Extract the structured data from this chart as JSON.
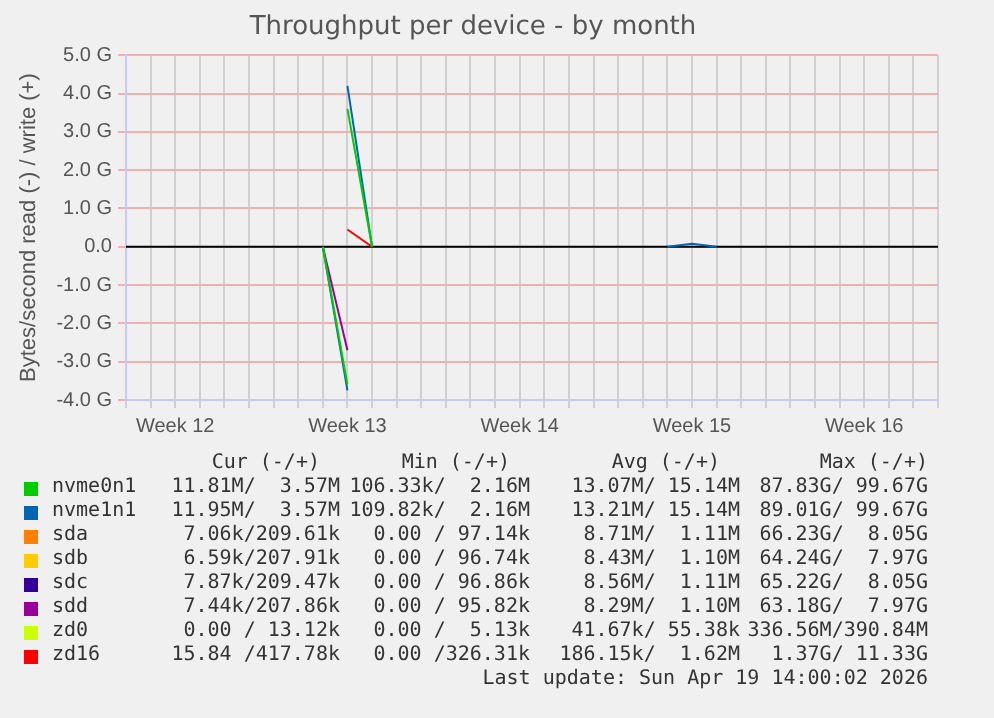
{
  "chart_data": {
    "type": "line",
    "title": "Throughput per device - by month",
    "ylabel": "Bytes/second read (-) / write (+)",
    "categories": [
      null,
      null,
      "Week 12",
      null,
      null,
      null,
      null,
      null,
      null,
      "Week 13",
      null,
      null,
      null,
      null,
      null,
      null,
      "Week 14",
      null,
      null,
      null,
      null,
      null,
      null,
      "Week 15",
      null,
      null,
      null,
      null,
      null,
      null,
      "Week 16",
      null,
      null,
      null
    ],
    "ylim": [
      -4,
      5
    ],
    "yticks": [
      {
        "value": -4,
        "label": "-4.0 G"
      },
      {
        "value": -3,
        "label": "-3.0 G"
      },
      {
        "value": -2,
        "label": "-2.0 G"
      },
      {
        "value": -1,
        "label": "-1.0 G"
      },
      {
        "value": 0,
        "label": "0.0"
      },
      {
        "value": 1,
        "label": "1.0 G"
      },
      {
        "value": 2,
        "label": "2.0 G"
      },
      {
        "value": 3,
        "label": "3.0 G"
      },
      {
        "value": 4,
        "label": "4.0 G"
      },
      {
        "value": 5,
        "label": "5.0 G"
      }
    ],
    "grid": true,
    "legend": "bottom",
    "marker": "none",
    "line_style": "solid",
    "ref_lines": [
      {
        "axis": "y",
        "value": 0,
        "color": "#000000"
      }
    ],
    "series": [
      {
        "name": "nvme0n1",
        "color": "#00cc00",
        "values": [
          null,
          null,
          null,
          null,
          null,
          null,
          null,
          null,
          null,
          3.6,
          0,
          null,
          null,
          null,
          null,
          null,
          null,
          null,
          null,
          null,
          null,
          null,
          null,
          null,
          null,
          null,
          null,
          null,
          null,
          null,
          null,
          null,
          null,
          null
        ]
      },
      {
        "color": "#00cc00",
        "values": [
          null,
          null,
          null,
          null,
          null,
          null,
          null,
          null,
          0,
          -3.6,
          null,
          null,
          null,
          null,
          null,
          null,
          null,
          null,
          null,
          null,
          null,
          null,
          null,
          null,
          null,
          null,
          null,
          null,
          null,
          null,
          null,
          null,
          null,
          null
        ]
      },
      {
        "name": "nvme1n1",
        "color": "#0066b3",
        "values": [
          null,
          null,
          null,
          null,
          null,
          null,
          null,
          null,
          null,
          4.2,
          0,
          null,
          null,
          null,
          null,
          null,
          null,
          null,
          null,
          null,
          null,
          null,
          0,
          0.08,
          0,
          null,
          null,
          null,
          null,
          null,
          null,
          null,
          null,
          null
        ]
      },
      {
        "color": "#0066b3",
        "values": [
          null,
          null,
          null,
          null,
          null,
          null,
          null,
          null,
          0,
          -3.75,
          null,
          null,
          null,
          null,
          null,
          null,
          null,
          null,
          null,
          null,
          null,
          null,
          null,
          null,
          null,
          null,
          null,
          null,
          null,
          null,
          null,
          null,
          null,
          null
        ]
      },
      {
        "name": "sda",
        "color": "#ff8000",
        "values": [
          null,
          null,
          null,
          null,
          null,
          null,
          null,
          null,
          null,
          null,
          null,
          null,
          null,
          null,
          null,
          null,
          null,
          null,
          null,
          null,
          null,
          null,
          null,
          null,
          null,
          null,
          null,
          null,
          null,
          null,
          null,
          null,
          null,
          null
        ]
      },
      {
        "name": "sdb",
        "color": "#ffcc00",
        "values": [
          null,
          null,
          null,
          null,
          null,
          null,
          null,
          null,
          null,
          null,
          null,
          null,
          null,
          null,
          null,
          null,
          null,
          null,
          null,
          null,
          null,
          null,
          null,
          null,
          null,
          null,
          null,
          null,
          null,
          null,
          null,
          null,
          null,
          null
        ]
      },
      {
        "name": "sdc",
        "color": "#330099",
        "values": [
          null,
          null,
          null,
          null,
          null,
          null,
          null,
          null,
          null,
          null,
          null,
          null,
          null,
          null,
          null,
          null,
          null,
          null,
          null,
          null,
          null,
          null,
          null,
          null,
          null,
          null,
          null,
          null,
          null,
          null,
          null,
          null,
          null,
          null
        ]
      },
      {
        "name": "sdd",
        "color": "#990099",
        "values": [
          null,
          null,
          null,
          null,
          null,
          null,
          null,
          null,
          0,
          -2.7,
          null,
          null,
          null,
          null,
          null,
          null,
          null,
          null,
          null,
          null,
          null,
          null,
          null,
          null,
          null,
          null,
          null,
          null,
          null,
          null,
          null,
          null,
          null,
          null
        ]
      },
      {
        "name": "zd0",
        "color": "#ccff00",
        "values": [
          null,
          null,
          null,
          null,
          null,
          null,
          null,
          null,
          null,
          null,
          null,
          null,
          null,
          null,
          null,
          null,
          null,
          null,
          null,
          null,
          null,
          null,
          null,
          null,
          null,
          null,
          null,
          null,
          null,
          null,
          null,
          null,
          null,
          null
        ]
      },
      {
        "name": "zd16",
        "color": "#ff0000",
        "values": [
          null,
          null,
          null,
          null,
          null,
          null,
          null,
          null,
          null,
          0.45,
          0,
          null,
          null,
          null,
          null,
          null,
          null,
          null,
          null,
          null,
          null,
          null,
          null,
          null,
          null,
          null,
          null,
          null,
          null,
          null,
          null,
          null,
          null,
          null
        ]
      }
    ],
    "annotations": [
      "Cur (-/+)",
      "Min (-/+)",
      "Avg (-/+)",
      "Max (-/+)",
      "11.81M/  3.57M",
      "106.33k/  2.16M",
      "13.07M/ 15.14M",
      "87.83G/ 99.67G",
      "11.95M/  3.57M",
      "109.82k/  2.16M",
      "13.21M/ 15.14M",
      "89.01G/ 99.67G",
      "7.06k/209.61k",
      "0.00 / 97.14k",
      "8.71M/  1.11M",
      "66.23G/  8.05G",
      "6.59k/207.91k",
      "0.00 / 96.74k",
      "8.43M/  1.10M",
      "64.24G/  7.97G",
      "7.87k/209.47k",
      "0.00 / 96.86k",
      "8.56M/  1.11M",
      "65.22G/  8.05G",
      "7.44k/207.86k",
      "0.00 / 95.82k",
      "8.29M/  1.10M",
      "63.18G/  7.97G",
      "0.00 / 13.12k",
      "0.00 /  5.13k",
      "41.67k/ 55.38k",
      "336.56M/390.84M",
      "15.84 /417.78k",
      "0.00 /326.31k",
      "186.15k/  1.62M",
      "1.37G/ 11.33G",
      "Last update: Sun Apr 19 14:00:02 2026"
    ]
  }
}
